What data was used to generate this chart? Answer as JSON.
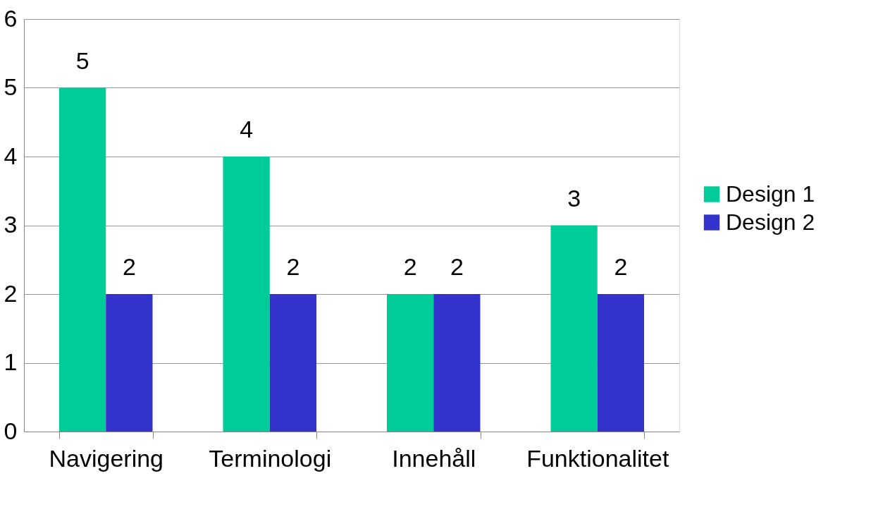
{
  "chart_data": {
    "type": "bar",
    "categories": [
      "Navigering",
      "Terminologi",
      "Innehåll",
      "Funktionalitet"
    ],
    "series": [
      {
        "name": "Design 1",
        "color": "#00cc99",
        "values": [
          5,
          4,
          2,
          3
        ]
      },
      {
        "name": "Design 2",
        "color": "#3333cc",
        "values": [
          2,
          2,
          2,
          2
        ]
      }
    ],
    "ylim": [
      0,
      6
    ],
    "yticks": [
      0,
      1,
      2,
      3,
      4,
      5,
      6
    ],
    "grid": "y",
    "legend": "right",
    "data_labels": true
  }
}
